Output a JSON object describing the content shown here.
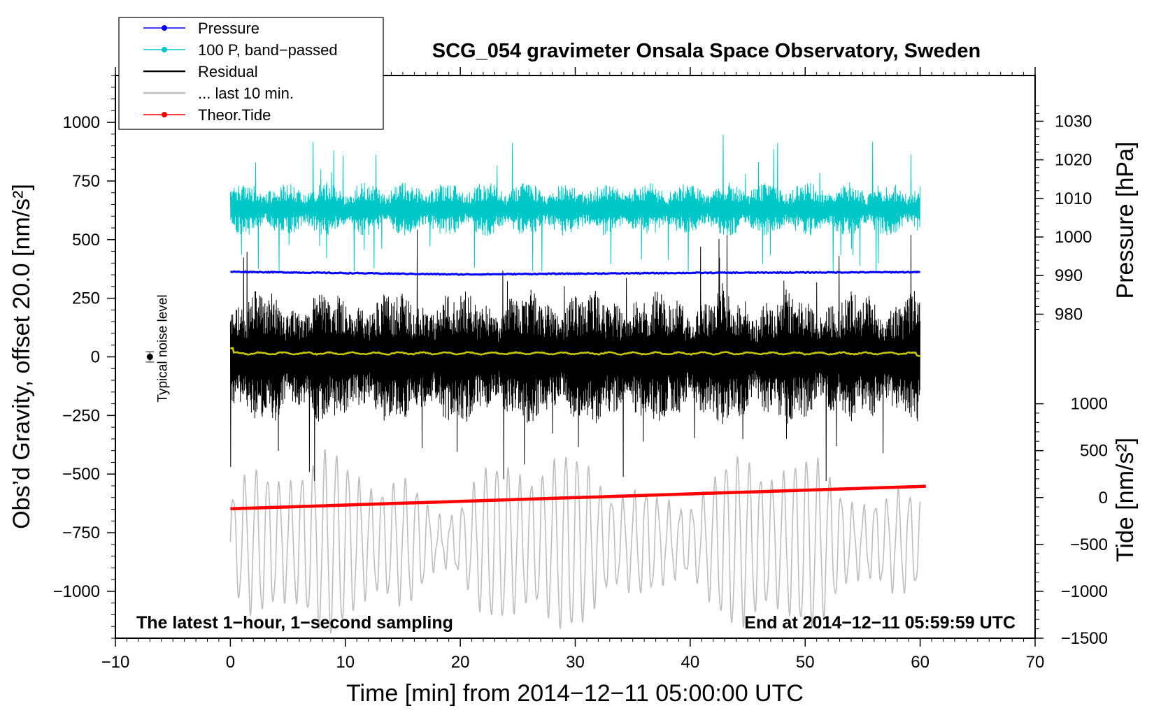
{
  "chart_data": {
    "type": "line",
    "title": "SCG_054 gravimeter Onsala Space Observatory, Sweden",
    "xlabel": "Time [min] from 2014−12−11 05:00:00 UTC",
    "ylabel_left": "Obs’d Gravity, offset 20.0 [nm/s²]",
    "ylabel_right_top": "Pressure [hPa]",
    "ylabel_right_bottom": "Tide [nm/s²]",
    "xlim": [
      -10,
      70
    ],
    "ylim_left": [
      -1200,
      1200
    ],
    "x_ticks": [
      -10,
      0,
      10,
      20,
      30,
      40,
      50,
      60,
      70
    ],
    "x_tick_labels": [
      "−10",
      "0",
      "10",
      "20",
      "30",
      "40",
      "50",
      "60",
      "70"
    ],
    "y_left_ticks": [
      1000,
      750,
      500,
      250,
      0,
      -250,
      -500,
      -750,
      -1000
    ],
    "y_left_tick_labels": [
      "1000",
      "750",
      "500",
      "250",
      "0",
      "−250",
      "−500",
      "−750",
      "−1000"
    ],
    "pressure_axis": {
      "ticks": [
        1030,
        1020,
        1010,
        1000,
        990,
        980
      ],
      "tick_labels": [
        "1030",
        "1020",
        "1010",
        "1000",
        "990",
        "980"
      ],
      "gravity_equiv_of_1030": 1005,
      "gravity_equiv_of_980": 182
    },
    "tide_axis": {
      "ticks": [
        1000,
        500,
        0,
        -500,
        -1000,
        -1500
      ],
      "tick_labels": [
        "1000",
        "500",
        "0",
        "−500",
        "−1000",
        "−1500"
      ],
      "gravity_equiv_of_1000": -200,
      "gravity_equiv_of_-1500": -1200
    },
    "legend": [
      {
        "label": "Pressure",
        "color": "#0000ff",
        "marker": true
      },
      {
        "label": "100 P, band−passed",
        "color": "#00c8c8",
        "marker": true
      },
      {
        "label": "Residual",
        "color": "#000000",
        "marker": false
      },
      {
        "label": "... last 10 min.",
        "color": "#bebebe",
        "marker": false
      },
      {
        "label": "Theor.Tide",
        "color": "#ff0000",
        "marker": true
      }
    ],
    "series": [
      {
        "name": "Pressure",
        "color": "#0000ff",
        "x_range": [
          0,
          60
        ],
        "pressure_hPa": [
          991.0,
          990.3,
          990.7,
          990.9
        ],
        "y_level_approx": 395
      },
      {
        "name": "100 P, band−passed",
        "color": "#00c8c8",
        "x_range": [
          0,
          60
        ],
        "y_center": 630,
        "y_min": 365,
        "y_max": 950
      },
      {
        "name": "Residual",
        "color": "#000000",
        "x_range": [
          0,
          60
        ],
        "y_center": 0,
        "y_min": -530,
        "y_max": 550
      },
      {
        "name": "Residual mean (smoothed)",
        "color": "#c8c800",
        "x_range": [
          0,
          60
        ],
        "y_level_approx": 15
      },
      {
        "name": "... last 10 min.",
        "color": "#bebebe",
        "x_range": [
          0,
          60
        ],
        "y_center": -790,
        "y_min": -1180,
        "y_max": -330
      },
      {
        "name": "Theor.Tide",
        "color": "#ff0000",
        "x_range": [
          0,
          60.5
        ],
        "tide_nms2": [
          -120,
          120
        ]
      }
    ],
    "noise_marker": {
      "x": -7,
      "y": 0,
      "err": 22,
      "label": "Typical noise level"
    },
    "annotations": {
      "bottom_left": "The latest 1−hour, 1−second sampling",
      "bottom_right": "End at 2014−12−11 05:59:59 UTC"
    }
  }
}
